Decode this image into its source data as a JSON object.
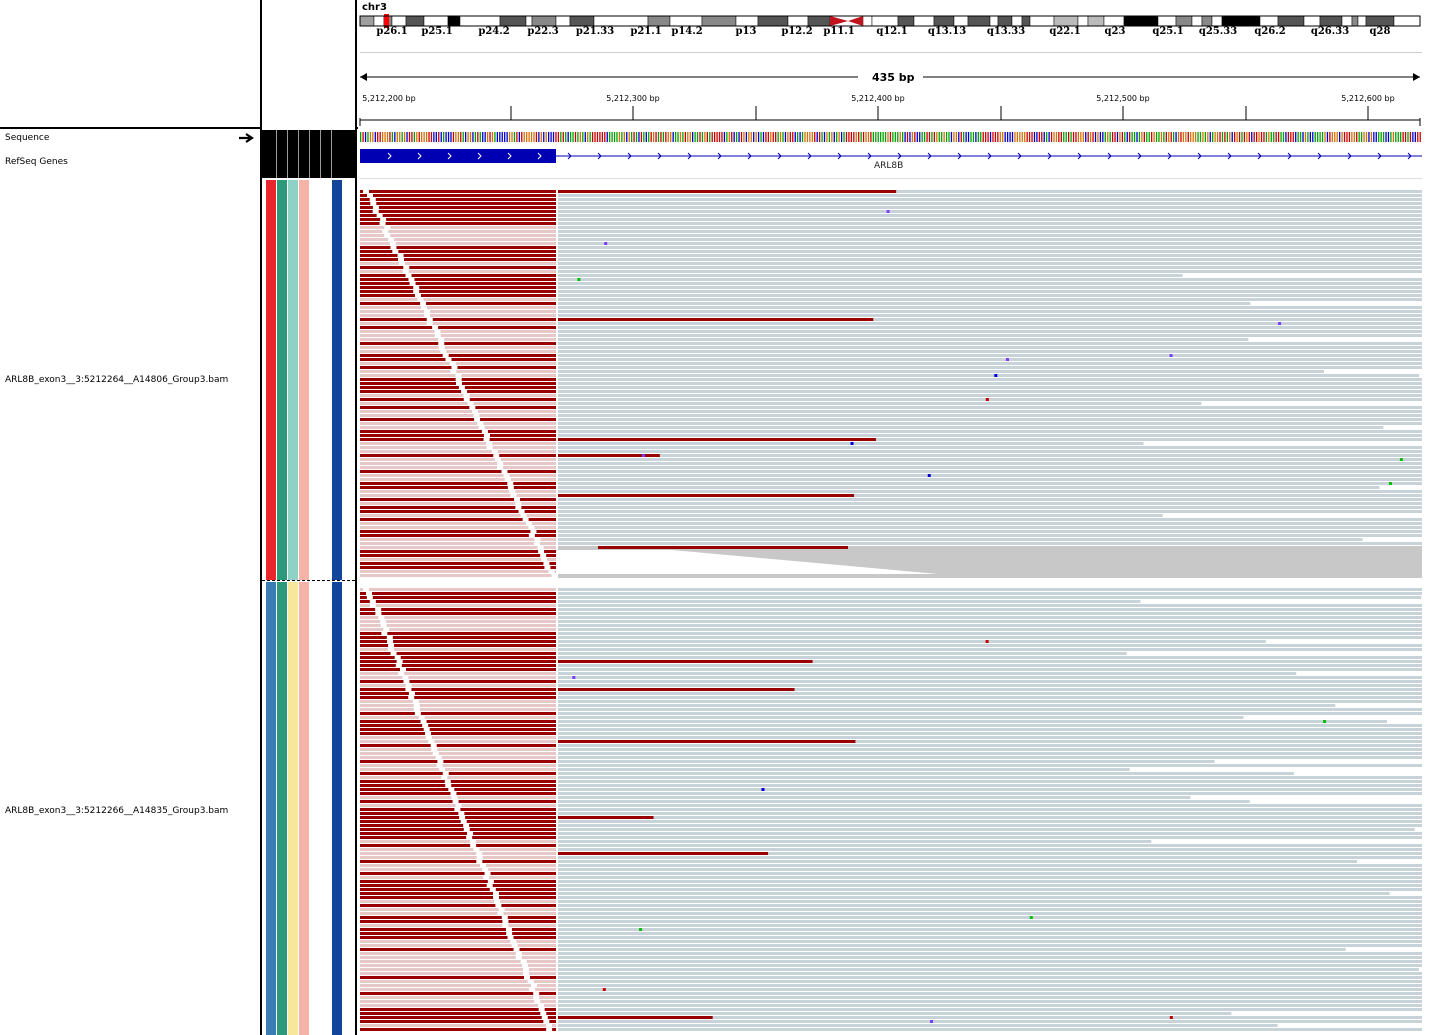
{
  "ideogram": {
    "chromosome": "chr3",
    "bands": [
      "p26.1",
      "p25.1",
      "p24.2",
      "p22.3",
      "p21.33",
      "p21.1",
      "p14.2",
      "p13",
      "p12.2",
      "p11.1",
      "q12.1",
      "q13.13",
      "q13.33",
      "q22.1",
      "q23",
      "q25.1",
      "q25.33",
      "q26.2",
      "q26.33",
      "q28"
    ]
  },
  "ruler": {
    "span_label": "435 bp",
    "ticks": [
      "5,212,200 bp",
      "5,212,300 bp",
      "5,212,400 bp",
      "5,212,500 bp",
      "5,212,600 bp"
    ]
  },
  "tracks": {
    "sequence": "Sequence",
    "refseq": "RefSeq Genes",
    "gene_name": "ARL8B",
    "bam1": "ARL8B_exon3__3:5212264__A14806_Group3.bam",
    "bam2": "ARL8B_exon3__3:5212266__A14835_Group3.bam"
  },
  "colors": {
    "softclip": "#990000",
    "aligned": "#c7d3d8",
    "gene": "#0000b2",
    "attr_group1": [
      "#e8262b",
      "#2a9a7a",
      "#8fd1c4",
      "#f6b4a8",
      "#13469a"
    ],
    "attr_group2": [
      "#3a7db2",
      "#2a9a7a",
      "#f7e79b",
      "#f6b4a8",
      "#13469a"
    ]
  }
}
